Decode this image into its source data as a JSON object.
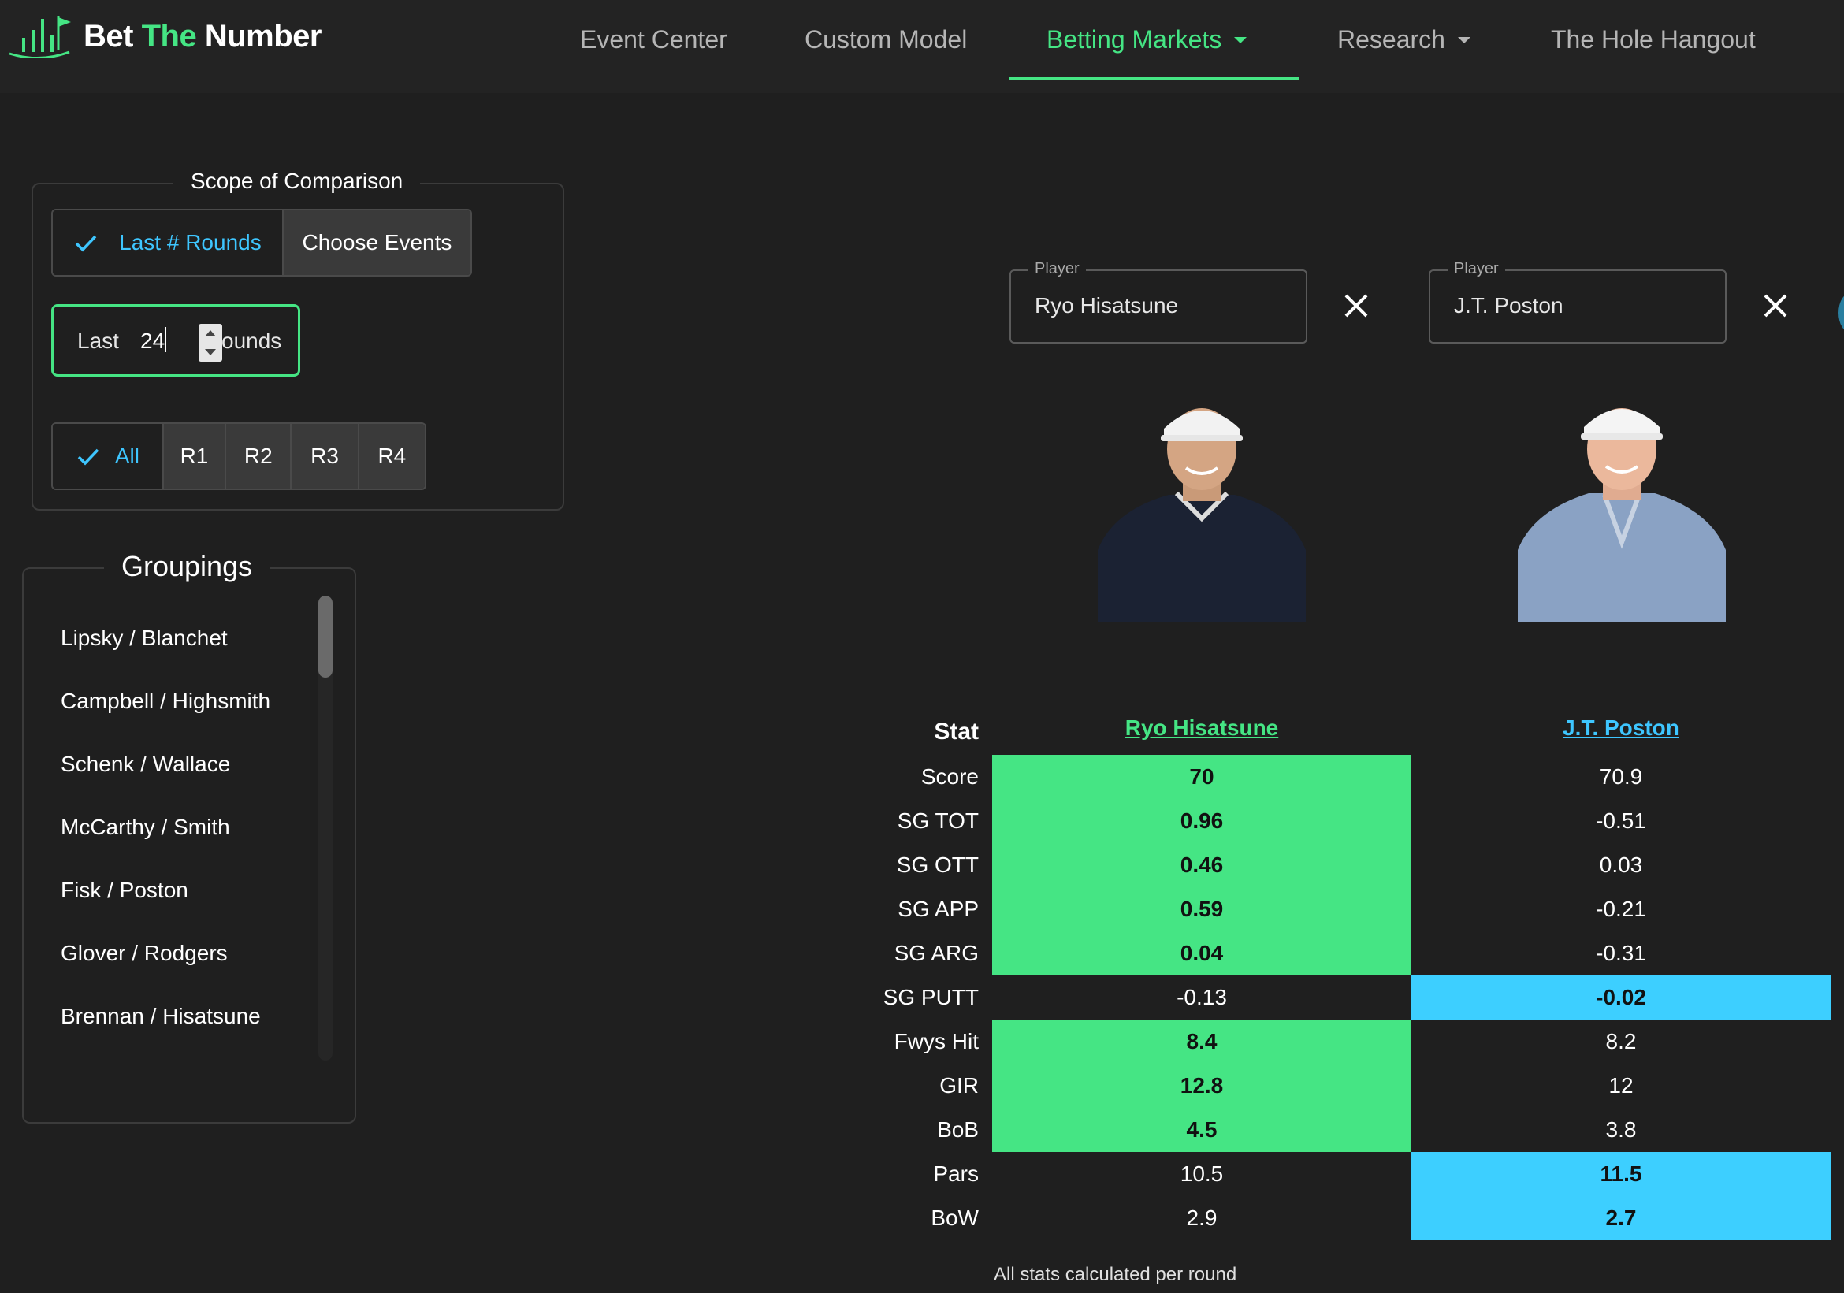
{
  "app": {
    "brand_part1": "Bet ",
    "brand_part2": "The",
    "brand_part3": " Number"
  },
  "nav": [
    {
      "label": "Event Center",
      "active": false,
      "dropdown": false
    },
    {
      "label": "Custom Model",
      "active": false,
      "dropdown": false
    },
    {
      "label": "Betting Markets",
      "active": true,
      "dropdown": true
    },
    {
      "label": "Research",
      "active": false,
      "dropdown": true
    },
    {
      "label": "The Hole Hangout",
      "active": false,
      "dropdown": false
    }
  ],
  "scope": {
    "title": "Scope of Comparison",
    "mode_options": [
      "Last # Rounds",
      "Choose Events"
    ],
    "mode_selected": "Last # Rounds",
    "rounds_prefix": "Last",
    "rounds_value": "24",
    "rounds_suffix": "ounds",
    "round_options": [
      "All",
      "R1",
      "R2",
      "R3",
      "R4"
    ],
    "round_selected": "All"
  },
  "groupings": {
    "title": "Groupings",
    "items": [
      "Lipsky / Blanchet",
      "Campbell / Highsmith",
      "Schenk / Wallace",
      "McCarthy / Smith",
      "Fisk / Poston",
      "Glover / Rodgers",
      "Brennan / Hisatsune"
    ]
  },
  "players": [
    {
      "field_label": "Player",
      "name": "Ryo Hisatsune",
      "color": "#45e584"
    },
    {
      "field_label": "Player",
      "name": "J.T. Poston",
      "color": "#3ec6ff"
    }
  ],
  "table": {
    "stat_header": "Stat",
    "rows": [
      {
        "stat": "Score",
        "p1": "70",
        "p2": "70.9",
        "winner": 1
      },
      {
        "stat": "SG TOT",
        "p1": "0.96",
        "p2": "-0.51",
        "winner": 1
      },
      {
        "stat": "SG OTT",
        "p1": "0.46",
        "p2": "0.03",
        "winner": 1
      },
      {
        "stat": "SG APP",
        "p1": "0.59",
        "p2": "-0.21",
        "winner": 1
      },
      {
        "stat": "SG ARG",
        "p1": "0.04",
        "p2": "-0.31",
        "winner": 1
      },
      {
        "stat": "SG PUTT",
        "p1": "-0.13",
        "p2": "-0.02",
        "winner": 2
      },
      {
        "stat": "Fwys Hit",
        "p1": "8.4",
        "p2": "8.2",
        "winner": 1
      },
      {
        "stat": "GIR",
        "p1": "12.8",
        "p2": "12",
        "winner": 1
      },
      {
        "stat": "BoB",
        "p1": "4.5",
        "p2": "3.8",
        "winner": 1
      },
      {
        "stat": "Pars",
        "p1": "10.5",
        "p2": "11.5",
        "winner": 2
      },
      {
        "stat": "BoW",
        "p1": "2.9",
        "p2": "2.7",
        "winner": 2
      }
    ],
    "footnote": "All stats calculated per round"
  },
  "colors": {
    "accent_green": "#45e584",
    "accent_blue": "#3dcfff",
    "background": "#1f1f1f"
  }
}
